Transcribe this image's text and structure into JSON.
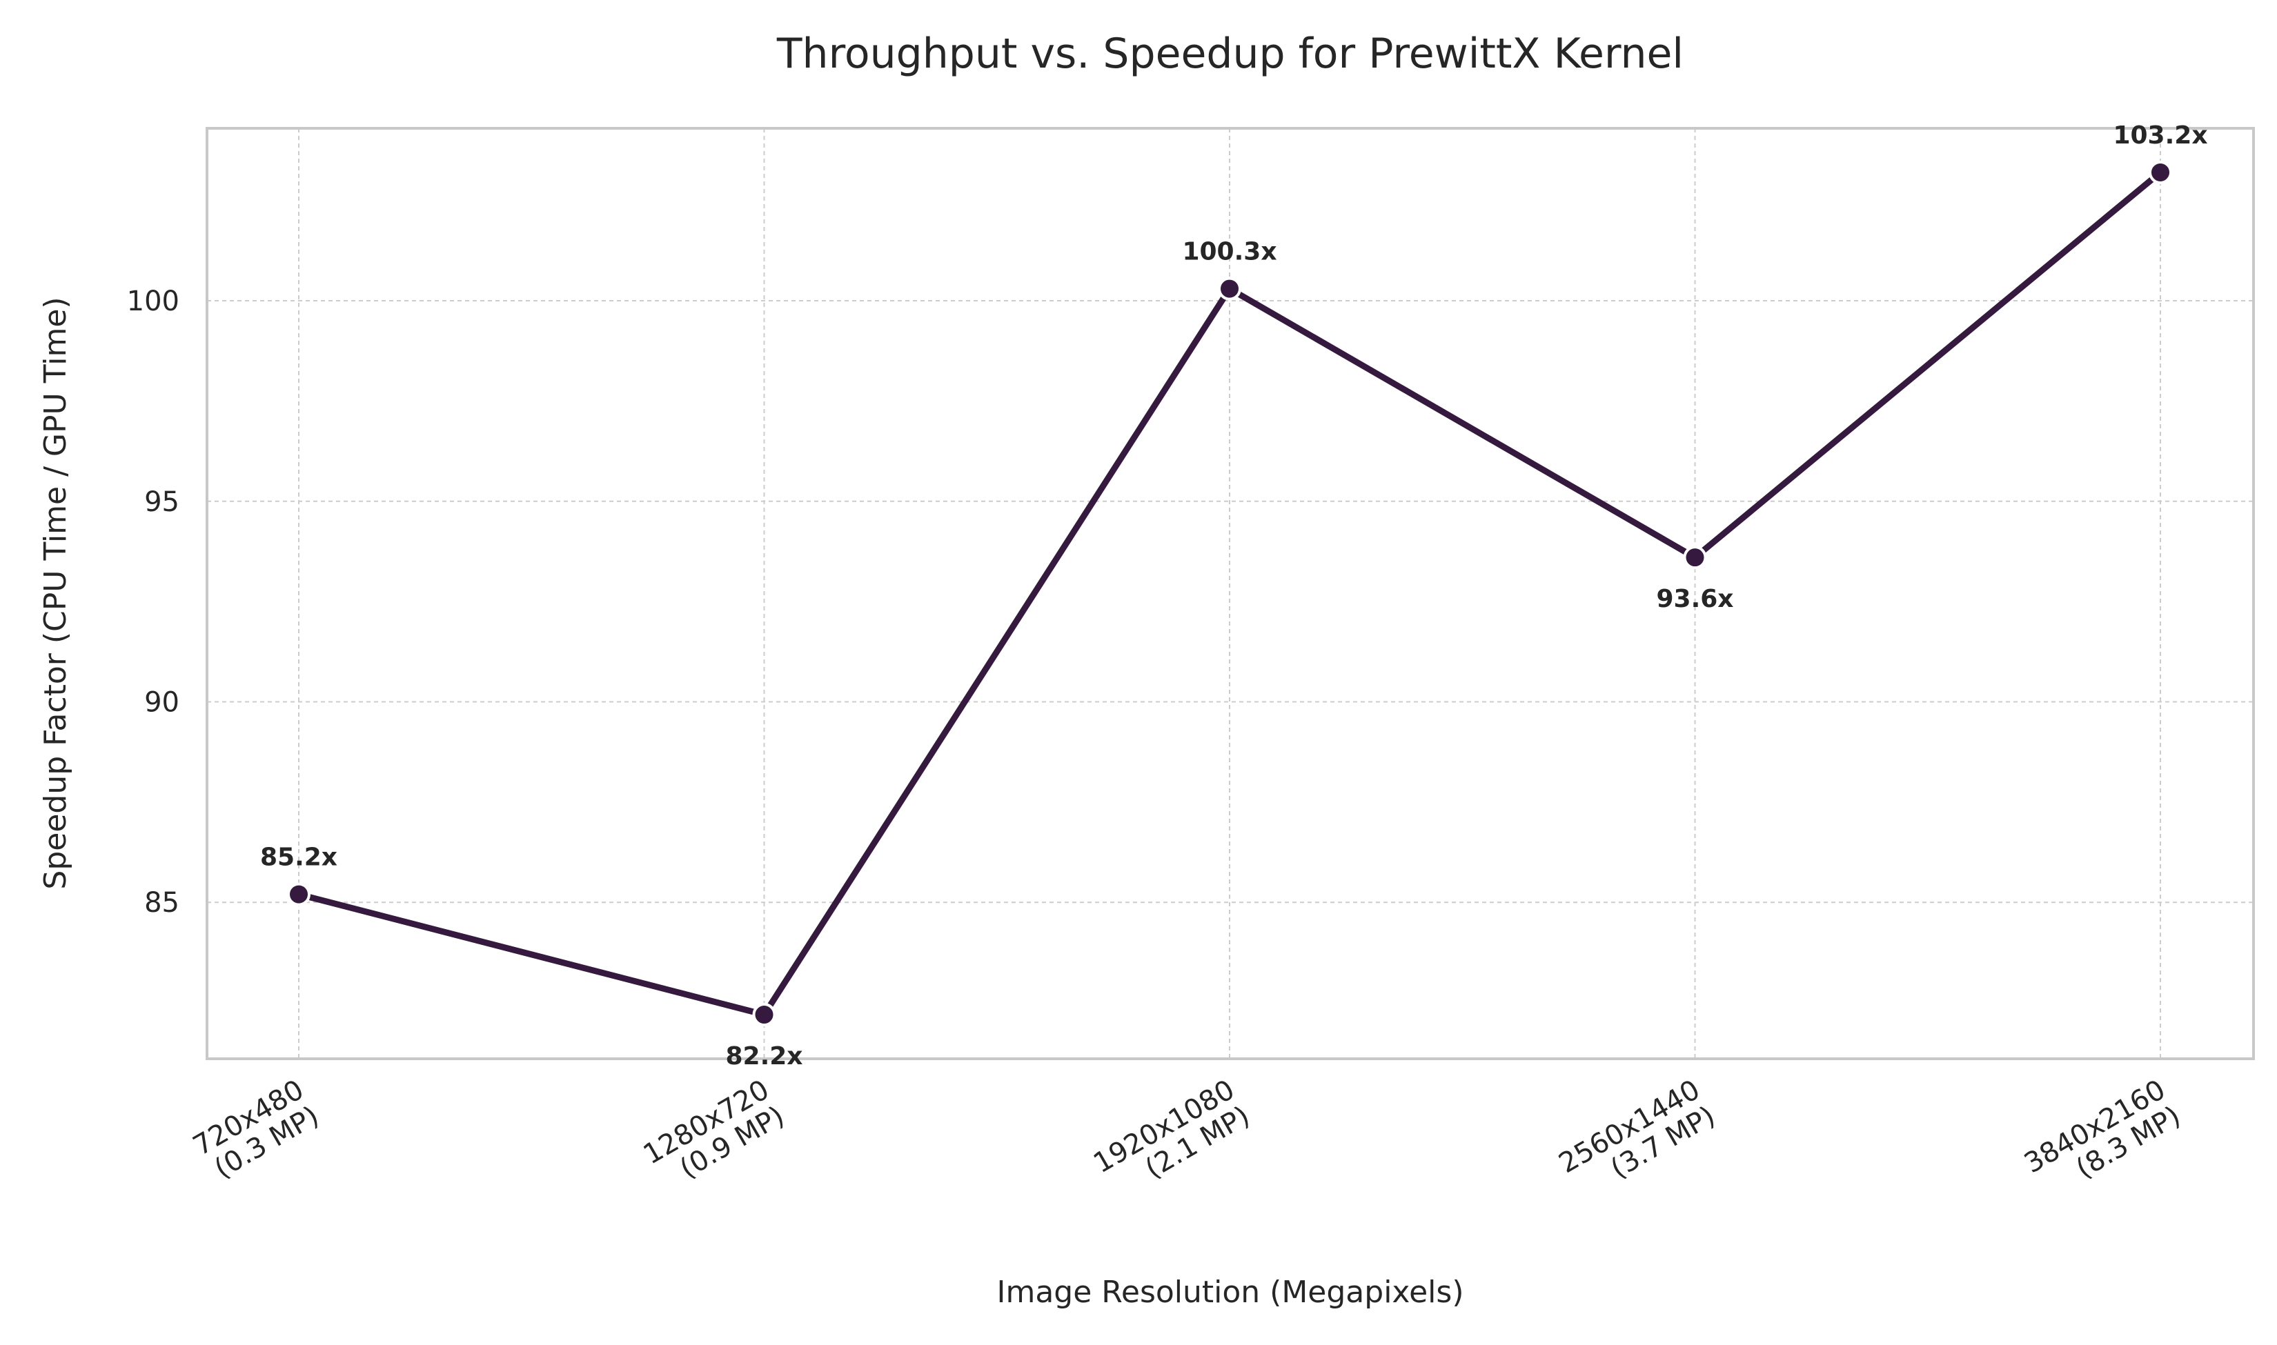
{
  "chart_data": {
    "type": "line",
    "title": "Throughput vs. Speedup for PrewittX Kernel",
    "xlabel": "Image Resolution (Megapixels)",
    "ylabel": "Speedup Factor (CPU Time / GPU Time)",
    "categories": [
      [
        "720x480",
        "(0.3 MP)"
      ],
      [
        "1280x720",
        "(0.9 MP)"
      ],
      [
        "1920x1080",
        "(2.1 MP)"
      ],
      [
        "2560x1440",
        "(3.7 MP)"
      ],
      [
        "3840x2160",
        "(8.3 MP)"
      ]
    ],
    "series": [
      {
        "values": [
          85.2,
          82.2,
          100.3,
          93.6,
          103.2
        ],
        "data_labels": [
          "85.2x",
          "82.2x",
          "100.3x",
          "93.6x",
          "103.2x"
        ],
        "label_positions": [
          "above",
          "below",
          "above",
          "below",
          "above"
        ],
        "color": "#35193e"
      }
    ],
    "ylim": [
      81.1,
      104.3
    ],
    "yticks": [
      85,
      90,
      95,
      100
    ],
    "grid": true,
    "legend": "none"
  }
}
